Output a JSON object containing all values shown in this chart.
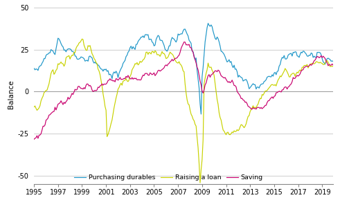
{
  "title": "",
  "ylabel": "Balance",
  "xlim_start": 1995.0,
  "xlim_end": 2019.92,
  "ylim": [
    -55,
    52
  ],
  "yticks": [
    -50,
    -25,
    0,
    25,
    50
  ],
  "xticks": [
    1995,
    1997,
    1999,
    2001,
    2003,
    2005,
    2007,
    2009,
    2011,
    2013,
    2015,
    2017,
    2019
  ],
  "color_blue": "#1E96C8",
  "color_lime": "#C8D200",
  "color_magenta": "#C8006E",
  "color_grid": "#BBBBBB",
  "color_zero": "#999999",
  "color_spine": "#888888",
  "legend_labels": [
    "Purchasing durables",
    "Raising a loan",
    "Saving"
  ],
  "line_width": 0.85,
  "background_color": "#FFFFFF"
}
